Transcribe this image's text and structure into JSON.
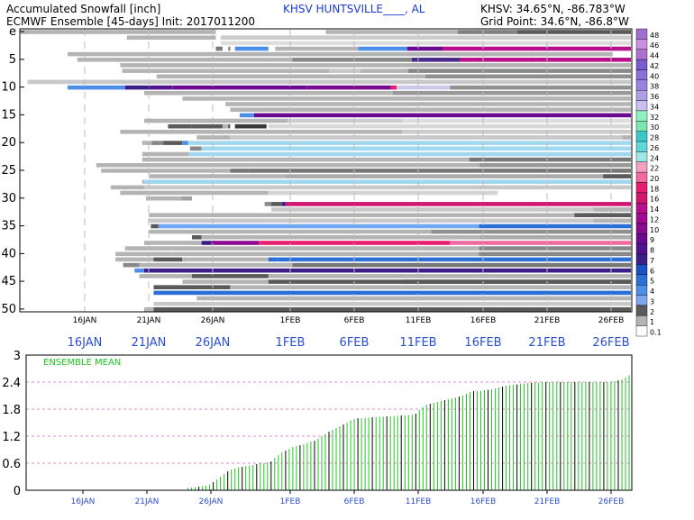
{
  "header": {
    "line1_left": "Accumulated Snowfall [inch]",
    "line2_left": "ECMWF Ensemble [45-days] Init: 2017011200",
    "station_title": "KHSV HUNTSVILLE____, AL",
    "line1_right": "KHSV: 34.65°N, -86.783°W",
    "line2_right": "Grid Point: 34.6°N, -86.8°W"
  },
  "chart_data": [
    {
      "type": "heatmap",
      "title": "Accumulated Snowfall [inch]",
      "x_tick_labels": [
        "16JAN",
        "21JAN",
        "26JAN",
        "1FEB",
        "6FEB",
        "11FEB",
        "16FEB",
        "21FEB",
        "26FEB"
      ],
      "x_tick_labels_below": [
        "16JAN",
        "21JAN",
        "26JAN",
        "1FEB",
        "6FEB",
        "11FEB",
        "16FEB",
        "21FEB",
        "26FEB"
      ],
      "y_tick_labels": [
        "e",
        "5",
        "10",
        "15",
        "20",
        "25",
        "30",
        "35",
        "40",
        "45",
        "50"
      ],
      "member_count": 51,
      "color_scale": {
        "levels": [
          "0.1",
          "1",
          "2",
          "3",
          "4",
          "5",
          "6",
          "7",
          "8",
          "9",
          "10",
          "12",
          "14",
          "16",
          "18",
          "20",
          "22",
          "24",
          "26",
          "28",
          "30",
          "32",
          "34",
          "36",
          "38",
          "40",
          "42",
          "44",
          "46",
          "48"
        ],
        "colors": [
          "#ffffff",
          "#b4b4b4",
          "#5a5a5a",
          "#7ea6ea",
          "#4d8ee8",
          "#2b6fd6",
          "#1c4fc0",
          "#3c1e88",
          "#52148e",
          "#6a0a90",
          "#8a0a8e",
          "#a00a8e",
          "#b8108a",
          "#d0166e",
          "#e81e6e",
          "#f06aa0",
          "#f4a0c2",
          "#a0e8e8",
          "#60d8d8",
          "#3cc8c8",
          "#7ae8b0",
          "#90f0c0",
          "#c8c0f0",
          "#b0a0e8",
          "#9a84e0",
          "#8a70d8",
          "#7a5cd0",
          "#b070d0",
          "#c890e0",
          "#a070d0"
        ]
      },
      "members": [
        [
          [
            -1,
            20.5,
            0.5,
            "#b4b4b4"
          ],
          [
            32,
            45.8,
            0.5,
            "#b4b4b4"
          ],
          [
            45.8,
            52,
            0.7,
            "#808080"
          ],
          [
            52,
            64,
            1.5,
            "#5a5a5a"
          ]
        ],
        [
          [
            11.2,
            20.5,
            1.5,
            "#b4b4b4"
          ],
          [
            21.0,
            64,
            0.1,
            "#cccccc"
          ]
        ],
        [
          [
            21.0,
            64,
            0.1,
            "#dddddd"
          ]
        ],
        [
          [
            20.5,
            21.2,
            2,
            "#7a7a7a"
          ],
          [
            21.8,
            22.0,
            2,
            "#7a7a7a"
          ],
          [
            22.5,
            23.2,
            3,
            "#4d8ee8"
          ],
          [
            23.2,
            26,
            3,
            "#4d8ee8"
          ],
          [
            26.7,
            35.4,
            2.5,
            "#b4b4b4"
          ],
          [
            35.4,
            40.5,
            3,
            "#4d8ee8"
          ],
          [
            40.5,
            44.2,
            5,
            "#6a0a90"
          ],
          [
            44.2,
            54,
            8,
            "#b8108a"
          ],
          [
            54,
            64,
            10,
            "#b8108a"
          ]
        ],
        [
          [
            5,
            62,
            1,
            "#b4b4b4"
          ]
        ],
        [
          [
            6,
            28.5,
            1,
            "#b4b4b4"
          ],
          [
            28.5,
            41,
            0.5,
            "#888888"
          ],
          [
            41,
            46,
            5,
            "#4a2888"
          ],
          [
            46,
            54,
            9,
            "#b8108a"
          ],
          [
            54,
            64,
            10,
            "#b8108a"
          ]
        ],
        [
          [
            10.5,
            64,
            1,
            "#b4b4b4"
          ]
        ],
        [
          [
            10.7,
            32.4,
            1,
            "#b4b4b4"
          ],
          [
            32.4,
            35.6,
            1,
            "#c8c8c8"
          ],
          [
            35.6,
            40.6,
            1,
            "#b4b4b4"
          ],
          [
            40.6,
            64,
            2,
            "#888888"
          ]
        ],
        [
          [
            14.3,
            42.4,
            1,
            "#b4b4b4"
          ],
          [
            42.4,
            64,
            1.5,
            "#909090"
          ]
        ],
        [
          [
            0.8,
            64,
            0.5,
            "#c8c8c8"
          ]
        ],
        [
          [
            5,
            11,
            3,
            "#4d8ee8"
          ],
          [
            11,
            13.5,
            5,
            "#3c1e88"
          ],
          [
            13.5,
            16,
            7,
            "#52148e"
          ],
          [
            16,
            30,
            9,
            "#6a0a90"
          ],
          [
            30,
            38.8,
            10,
            "#7a0a90"
          ],
          [
            38.8,
            39.4,
            18,
            "#e81e6e"
          ],
          [
            39.4,
            45,
            10,
            "#c8c8e8"
          ],
          [
            45,
            64,
            1.5,
            "#909090"
          ]
        ],
        [
          [
            13,
            23,
            1,
            "#b4b4b4"
          ],
          [
            23,
            39,
            1.5,
            "#b4b4b4"
          ],
          [
            39,
            64,
            2,
            "#999999"
          ]
        ],
        [
          [
            17,
            64,
            1.2,
            "#b4b4b4"
          ]
        ],
        [
          [
            21.5,
            64,
            1,
            "#b4b4b4"
          ]
        ],
        [
          [
            22,
            64,
            1,
            "#b4b4b4"
          ]
        ],
        [
          [
            23,
            24.5,
            3,
            "#4d8ee8"
          ],
          [
            24.5,
            64,
            9,
            "#6a0a90"
          ]
        ],
        [
          [
            13,
            28,
            1,
            "#b4b4b4"
          ],
          [
            28,
            40,
            0.5,
            "#cccccc"
          ],
          [
            40,
            64,
            0.3,
            "#dddddd"
          ]
        ],
        [
          [
            15.5,
            18,
            2,
            "#5a5a5a"
          ],
          [
            18,
            22,
            2,
            "#5a5a5a"
          ],
          [
            21.2,
            21.8,
            1,
            "#b4b4b4"
          ],
          [
            22.5,
            25.8,
            2,
            "#3a3a3a"
          ],
          [
            26,
            64,
            0.2,
            "#d8d8d8"
          ]
        ],
        [
          [
            10.5,
            21.5,
            1,
            "#b4b4b4"
          ],
          [
            21.5,
            40,
            1,
            "#b4b4b4"
          ],
          [
            40,
            64,
            0.5,
            "#cccccc"
          ]
        ],
        [
          [
            18.5,
            22,
            1,
            "#b4b4b4"
          ],
          [
            22,
            64,
            0.5,
            "#c8c8c8"
          ],
          [
            63,
            64.5,
            1,
            "#b4b4b4"
          ]
        ],
        [
          [
            12.8,
            13.8,
            1,
            "#b4b4b4"
          ],
          [
            13.8,
            15,
            2,
            "#888888"
          ],
          [
            15,
            17,
            2,
            "#5a5a5a"
          ],
          [
            17,
            17.6,
            3,
            "#4d8ee8"
          ],
          [
            17.6,
            64,
            20,
            "#a0d8f0"
          ]
        ],
        [
          [
            17.8,
            19,
            2,
            "#888888"
          ],
          [
            19,
            64,
            20,
            "#a0d8f0"
          ]
        ],
        [
          [
            12.8,
            17.7,
            1,
            "#b4b4b4"
          ],
          [
            17.7,
            64,
            20,
            "#a0d8f0"
          ]
        ],
        [
          [
            12.8,
            47,
            1,
            "#b4b4b4"
          ],
          [
            47,
            64,
            2,
            "#777777"
          ]
        ],
        [
          [
            8,
            24,
            1,
            "#b4b4b4"
          ],
          [
            24,
            48,
            1,
            "#b4b4b4"
          ],
          [
            48,
            64,
            1,
            "#999999"
          ]
        ],
        [
          [
            8.5,
            22,
            1,
            "#b4b4b4"
          ],
          [
            22,
            24,
            2,
            "#777777"
          ],
          [
            24,
            64,
            1.5,
            "#777777"
          ]
        ],
        [
          [
            13.5,
            22,
            1,
            "#b4b4b4"
          ],
          [
            22,
            27.8,
            1,
            "#b4b4b4"
          ],
          [
            27.8,
            64,
            0.2,
            "#aaaaaa"
          ],
          [
            61,
            64,
            2,
            "#5a5a5a"
          ]
        ],
        [
          [
            12.8,
            13,
            1,
            "#b4b4b4"
          ],
          [
            13,
            64,
            20,
            "#a0d8f0"
          ]
        ],
        [
          [
            9.5,
            13,
            1,
            "#b4b4b4"
          ],
          [
            13,
            64,
            0.5,
            "#c8c8c8"
          ]
        ],
        [
          [
            10.5,
            26,
            1,
            "#b4b4b4"
          ],
          [
            26,
            50,
            0.3,
            "#d4d4d4"
          ]
        ],
        [
          [
            13.2,
            16.9,
            1,
            "#b4b4b4"
          ],
          [
            16.9,
            18,
            2,
            "#a0a0a0"
          ]
        ],
        [
          [
            25.6,
            26.3,
            2,
            "#888888"
          ],
          [
            26.3,
            27.4,
            2,
            "#5a5a5a"
          ],
          [
            27.4,
            27.8,
            5,
            "#3c1e88"
          ],
          [
            27.8,
            64,
            12,
            "#d0166e"
          ]
        ],
        [
          [
            26.3,
            64,
            0.5,
            "#c8c8c8"
          ],
          [
            60,
            64,
            1,
            "#b4b4b4"
          ]
        ],
        [
          [
            13.5,
            46,
            1,
            "#b4b4b4"
          ],
          [
            46,
            58,
            1,
            "#b4b4b4"
          ],
          [
            58,
            64,
            2,
            "#5a5a5a"
          ]
        ],
        [
          [
            13.5,
            64,
            0.5,
            "#c8c8c8"
          ],
          [
            60,
            64,
            1,
            "#b4b4b4"
          ]
        ],
        [
          [
            13.7,
            14.5,
            2,
            "#5a5a5a"
          ],
          [
            14.5,
            48,
            3,
            "#6ea8f0"
          ],
          [
            48,
            64,
            5,
            "#2b6fd6"
          ]
        ],
        [
          [
            13.5,
            43,
            1,
            "#b4b4b4"
          ],
          [
            43,
            44.5,
            1.5,
            "#909090"
          ],
          [
            44.5,
            64,
            1.5,
            "#909090"
          ]
        ],
        [
          [
            18,
            19,
            2,
            "#5a5a5a"
          ],
          [
            19,
            23,
            1,
            "#b4b4b4"
          ],
          [
            23,
            48,
            1,
            "#b4b4b4"
          ],
          [
            48,
            64,
            1,
            "#aaaaaa"
          ]
        ],
        [
          [
            13,
            19,
            1,
            "#b4b4b4"
          ],
          [
            19,
            20,
            5,
            "#3c1e88"
          ],
          [
            20,
            25,
            9,
            "#8a0a8e"
          ],
          [
            25,
            45,
            14,
            "#e81e6e"
          ],
          [
            45,
            64,
            18,
            "#f06aa0"
          ]
        ],
        [
          [
            11,
            48,
            1,
            "#b4b4b4"
          ],
          [
            48,
            64,
            2,
            "#888888"
          ]
        ],
        [
          [
            10,
            16,
            1,
            "#b4b4b4"
          ],
          [
            16,
            48,
            1,
            "#b4b4b4"
          ],
          [
            48,
            64,
            2,
            "#888888"
          ]
        ],
        [
          [
            10,
            14,
            1,
            "#b4b4b4"
          ],
          [
            14,
            17,
            2,
            "#5a5a5a"
          ],
          [
            17,
            26,
            1,
            "#b4b4b4"
          ],
          [
            26,
            27,
            6,
            "#2b6fd6"
          ],
          [
            27,
            64,
            6,
            "#2b6fd6"
          ]
        ],
        [
          [
            10.8,
            12.5,
            2,
            "#888888"
          ],
          [
            12.5,
            28.5,
            1,
            "#b4b4b4"
          ],
          [
            28.5,
            64,
            2,
            "#777777"
          ]
        ],
        [
          [
            12,
            13,
            3,
            "#4d8ee8"
          ],
          [
            13,
            64,
            7,
            "#3c1e88"
          ]
        ],
        [
          [
            12.5,
            18,
            1,
            "#b4b4b4"
          ],
          [
            18,
            26,
            2,
            "#5a5a5a"
          ],
          [
            26,
            64,
            1,
            "#b4b4b4"
          ]
        ],
        [
          [
            17,
            26,
            1,
            "#b4b4b4"
          ],
          [
            26,
            64,
            2,
            "#5a5a5a"
          ],
          [
            40,
            64,
            2,
            "#5a5a5a"
          ]
        ],
        [
          [
            14,
            22,
            2,
            "#5a5a5a"
          ],
          [
            22,
            29,
            1,
            "#b4b4b4"
          ],
          [
            29,
            40,
            1,
            "#b4b4b4"
          ],
          [
            40,
            64,
            1,
            "#b4b4b4"
          ]
        ],
        [
          [
            14,
            64,
            5,
            "#2b6fd6"
          ]
        ],
        [
          [
            18.5,
            43,
            1,
            "#b4b4b4"
          ],
          [
            43,
            64,
            1,
            "#b4b4b4"
          ]
        ],
        [
          [
            14,
            64,
            0.5,
            "#c8c8c8"
          ]
        ],
        [
          [
            13,
            24,
            1,
            "#b4b4b4"
          ],
          [
            14,
            64,
            2,
            "#5a5a5a"
          ]
        ]
      ]
    },
    {
      "type": "bar",
      "title": "ENSEMBLE MEAN",
      "x_tick_labels": [
        "16JAN",
        "21JAN",
        "26JAN",
        "1FEB",
        "6FEB",
        "11FEB",
        "16FEB",
        "21FEB",
        "26FEB"
      ],
      "y_tick_labels": [
        "3",
        "2.4",
        "1.8",
        "1.2",
        "0.6",
        "0"
      ],
      "ylim": [
        0,
        3
      ],
      "x_first_day_offset": 0,
      "days_per_label": 5,
      "values": [
        0,
        0,
        0,
        0,
        0,
        0,
        0,
        0,
        0,
        0,
        0,
        0,
        0,
        0,
        0,
        0,
        0,
        0,
        0,
        0,
        0,
        0,
        0,
        0,
        0,
        0,
        0,
        0,
        0,
        0,
        0,
        0,
        0,
        0,
        0,
        0,
        0,
        0,
        0,
        0,
        0,
        0,
        0,
        0,
        0.05,
        0.06,
        0.07,
        0.08,
        0.09,
        0.1,
        0.13,
        0.18,
        0.24,
        0.3,
        0.36,
        0.42,
        0.46,
        0.49,
        0.51,
        0.52,
        0.54,
        0.55,
        0.56,
        0.58,
        0.6,
        0.6,
        0.62,
        0.64,
        0.72,
        0.78,
        0.84,
        0.88,
        0.92,
        0.96,
        0.98,
        1.0,
        1.02,
        1.05,
        1.08,
        1.1,
        1.15,
        1.2,
        1.25,
        1.3,
        1.34,
        1.38,
        1.42,
        1.46,
        1.5,
        1.55,
        1.58,
        1.6,
        1.6,
        1.61,
        1.61,
        1.62,
        1.62,
        1.63,
        1.63,
        1.64,
        1.64,
        1.65,
        1.65,
        1.66,
        1.66,
        1.67,
        1.68,
        1.7,
        1.78,
        1.84,
        1.9,
        1.92,
        1.94,
        1.96,
        1.98,
        2.0,
        2.02,
        2.04,
        2.06,
        2.08,
        2.1,
        2.14,
        2.18,
        2.2,
        2.2,
        2.21,
        2.22,
        2.23,
        2.24,
        2.26,
        2.28,
        2.3,
        2.32,
        2.33,
        2.34,
        2.35,
        2.36,
        2.37,
        2.38,
        2.38,
        2.39,
        2.39,
        2.4,
        2.4,
        2.4,
        2.4,
        2.4,
        2.4,
        2.4,
        2.4,
        2.4,
        2.4,
        2.4,
        2.4,
        2.4,
        2.4,
        2.4,
        2.4,
        2.4,
        2.4,
        2.4,
        2.41,
        2.42,
        2.44,
        2.46,
        2.5,
        2.55
      ]
    }
  ]
}
